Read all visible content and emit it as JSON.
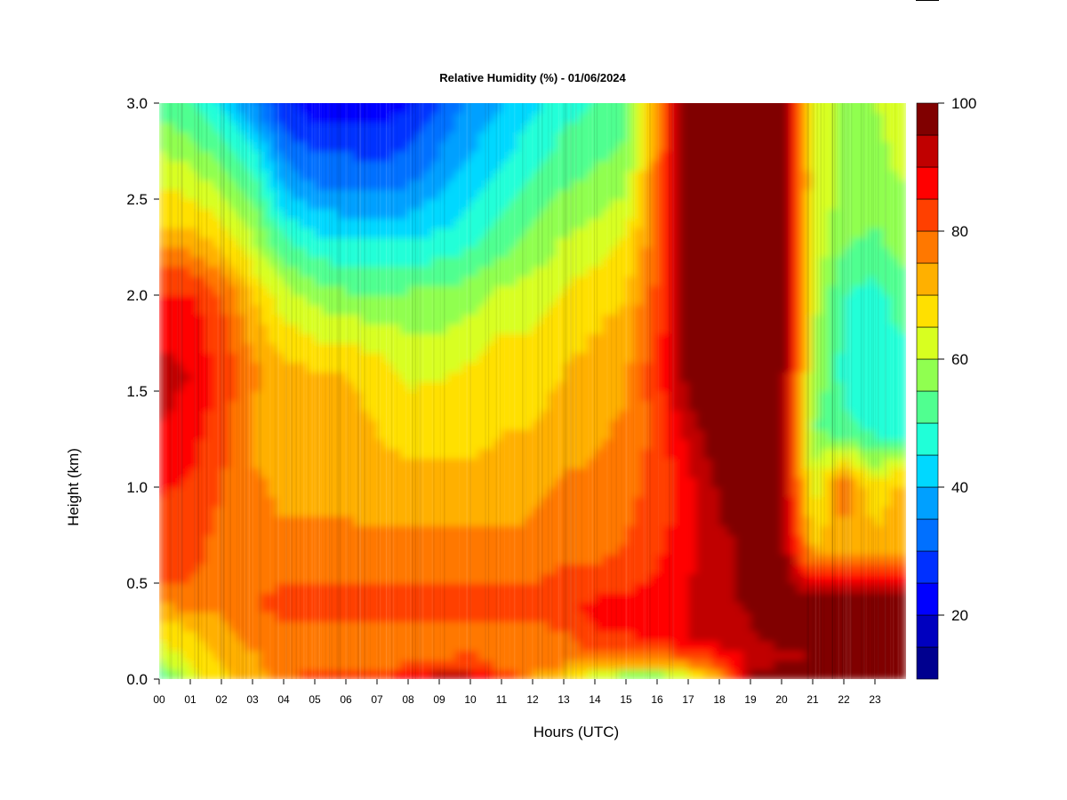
{
  "chart_data": {
    "type": "heatmap",
    "title": "Relative Humidity (%) - 01/06/2024",
    "xlabel": "Hours (UTC)",
    "ylabel": "Height (km)",
    "xlim": [
      0,
      24
    ],
    "ylim": [
      0,
      3
    ],
    "x_ticks": [
      "00",
      "01",
      "02",
      "03",
      "04",
      "05",
      "06",
      "07",
      "08",
      "09",
      "10",
      "11",
      "12",
      "13",
      "14",
      "15",
      "16",
      "17",
      "18",
      "19",
      "20",
      "21",
      "22",
      "23"
    ],
    "y_ticks": [
      "0.0",
      "0.5",
      "1.0",
      "1.5",
      "2.0",
      "2.5",
      "3.0"
    ],
    "colorbar": {
      "min": 10,
      "max": 100,
      "step": 5,
      "tick_labels": [
        "20",
        "40",
        "60",
        "80",
        "100"
      ],
      "tick_values": [
        20,
        40,
        60,
        80,
        100
      ],
      "colors": [
        "#00008f",
        "#0000bf",
        "#0000ff",
        "#0030ff",
        "#0070ff",
        "#00a0ff",
        "#00d8ff",
        "#20ffd8",
        "#50ff90",
        "#90ff50",
        "#d8ff20",
        "#ffe000",
        "#ffb000",
        "#ff7800",
        "#ff4000",
        "#ff0000",
        "#c00000",
        "#800000"
      ]
    },
    "grid_hours": [
      0,
      1,
      2,
      3,
      4,
      5,
      6,
      7,
      8,
      9,
      10,
      11,
      12,
      13,
      14,
      15,
      16,
      17,
      18,
      19,
      20,
      21,
      22,
      23,
      23.75
    ],
    "grid_heights_km": [
      0.0,
      0.05,
      0.1,
      0.2,
      0.3,
      0.4,
      0.5,
      0.7,
      1.0,
      1.3,
      1.6,
      2.0,
      2.3,
      2.6,
      3.0
    ],
    "values_rh": [
      [
        50,
        62,
        68,
        72,
        76,
        82,
        80,
        86,
        92,
        94,
        92,
        86,
        75,
        66,
        55,
        50,
        50,
        58,
        72,
        98,
        100,
        100,
        100,
        100,
        100
      ],
      [
        55,
        65,
        70,
        74,
        78,
        82,
        80,
        80,
        84,
        88,
        88,
        80,
        76,
        74,
        72,
        68,
        68,
        70,
        80,
        96,
        99,
        100,
        100,
        100,
        100
      ],
      [
        60,
        66,
        70,
        74,
        76,
        78,
        76,
        76,
        78,
        80,
        82,
        78,
        76,
        76,
        76,
        76,
        76,
        78,
        84,
        90,
        92,
        95,
        100,
        100,
        100
      ],
      [
        66,
        68,
        72,
        76,
        76,
        76,
        76,
        76,
        76,
        76,
        78,
        76,
        76,
        78,
        84,
        84,
        86,
        90,
        92,
        94,
        97,
        99,
        100,
        100,
        100
      ],
      [
        68,
        72,
        74,
        78,
        80,
        80,
        80,
        80,
        80,
        80,
        80,
        80,
        80,
        82,
        86,
        86,
        88,
        90,
        92,
        95,
        98,
        100,
        100,
        100,
        100
      ],
      [
        76,
        78,
        78,
        80,
        82,
        82,
        82,
        82,
        82,
        82,
        82,
        82,
        82,
        84,
        86,
        86,
        88,
        90,
        94,
        96,
        98,
        100,
        100,
        100,
        100
      ],
      [
        80,
        80,
        78,
        78,
        80,
        80,
        80,
        80,
        80,
        80,
        80,
        80,
        80,
        82,
        82,
        84,
        86,
        90,
        94,
        96,
        98,
        88,
        88,
        88,
        88
      ],
      [
        82,
        82,
        78,
        76,
        76,
        76,
        76,
        76,
        76,
        76,
        76,
        76,
        76,
        78,
        78,
        80,
        84,
        88,
        94,
        96,
        98,
        70,
        72,
        72,
        72
      ],
      [
        86,
        84,
        80,
        76,
        74,
        74,
        74,
        72,
        72,
        72,
        72,
        72,
        74,
        76,
        76,
        78,
        82,
        88,
        96,
        98,
        98,
        62,
        80,
        66,
        72
      ],
      [
        90,
        88,
        82,
        74,
        72,
        72,
        72,
        70,
        68,
        68,
        68,
        70,
        70,
        72,
        74,
        76,
        82,
        92,
        100,
        100,
        100,
        55,
        52,
        48,
        48
      ],
      [
        92,
        90,
        84,
        76,
        72,
        70,
        70,
        68,
        64,
        64,
        66,
        68,
        68,
        70,
        72,
        74,
        84,
        98,
        100,
        100,
        100,
        60,
        48,
        46,
        48
      ],
      [
        86,
        86,
        80,
        70,
        62,
        58,
        56,
        56,
        56,
        56,
        58,
        62,
        62,
        66,
        68,
        70,
        82,
        100,
        100,
        100,
        100,
        62,
        50,
        48,
        52
      ],
      [
        72,
        72,
        68,
        60,
        50,
        46,
        44,
        44,
        44,
        46,
        48,
        52,
        56,
        60,
        62,
        66,
        80,
        100,
        100,
        100,
        100,
        64,
        56,
        54,
        58
      ],
      [
        64,
        62,
        58,
        52,
        38,
        34,
        34,
        32,
        34,
        38,
        42,
        46,
        50,
        54,
        56,
        58,
        78,
        100,
        100,
        100,
        100,
        66,
        58,
        58,
        60
      ],
      [
        52,
        50,
        44,
        36,
        26,
        22,
        22,
        22,
        24,
        30,
        36,
        40,
        44,
        48,
        50,
        52,
        76,
        100,
        100,
        100,
        100,
        64,
        58,
        60,
        62
      ]
    ]
  }
}
